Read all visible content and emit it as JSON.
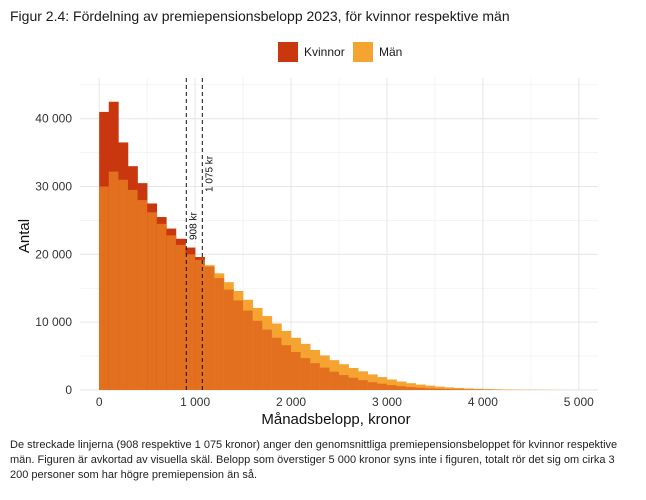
{
  "title": "Figur 2.4: Fördelning av premiepensionsbelopp 2023, för kvinnor respektive män",
  "footnote": "De streckade linjerna (908 respektive 1 075 kronor) anger den genomsnittliga premiepensionsbeloppet för kvinnor respektive män. Figuren är avkortad av visuella skäl. Belopp som överstiger 5 000 kronor syns inte i figuren, totalt rör det sig om cirka 3 200 personer som har högre premiepension än så.",
  "chart_data": {
    "type": "area",
    "chart_style": "overlapping histogram",
    "xlabel": "Månadsbelopp, kronor",
    "ylabel": "Antal",
    "xlim": [
      -200,
      5200
    ],
    "ylim": [
      0,
      46000
    ],
    "x_ticks": [
      0,
      1000,
      2000,
      3000,
      4000,
      5000
    ],
    "x_tick_labels": [
      "0",
      "1 000",
      "2 000",
      "3 000",
      "4 000",
      "5 000"
    ],
    "y_ticks": [
      0,
      10000,
      20000,
      30000,
      40000
    ],
    "y_tick_labels": [
      "0",
      "10 000",
      "20 000",
      "30 000",
      "40 000"
    ],
    "grid": true,
    "legend_position": "top-center",
    "x": [
      0,
      100,
      200,
      300,
      400,
      500,
      600,
      700,
      800,
      900,
      1000,
      1100,
      1200,
      1300,
      1400,
      1500,
      1600,
      1700,
      1800,
      1900,
      2000,
      2100,
      2200,
      2300,
      2400,
      2500,
      2600,
      2700,
      2800,
      2900,
      3000,
      3100,
      3200,
      3300,
      3400,
      3500,
      3600,
      3700,
      3800,
      3900,
      4000,
      4100,
      4200,
      4300,
      4400,
      4500,
      4600,
      4700,
      4800,
      4900,
      5000
    ],
    "series": [
      {
        "name": "Kvinnor",
        "color": "#c8370e",
        "values": [
          41000,
          42500,
          36500,
          33000,
          30500,
          27500,
          25500,
          23800,
          22300,
          21000,
          19600,
          18200,
          16500,
          14800,
          13200,
          11700,
          10200,
          8900,
          7700,
          6600,
          5600,
          4700,
          3950,
          3300,
          2700,
          2200,
          1800,
          1450,
          1150,
          920,
          720,
          560,
          430,
          330,
          250,
          190,
          140,
          105,
          78,
          57,
          42,
          31,
          22,
          16,
          12,
          9,
          6,
          4,
          3,
          2,
          1
        ]
      },
      {
        "name": "Män",
        "color": "#f5a331",
        "values": [
          30000,
          32200,
          31000,
          29500,
          28000,
          26200,
          24500,
          22800,
          21400,
          20000,
          19200,
          18400,
          17200,
          15900,
          14600,
          13300,
          12100,
          10900,
          9800,
          8700,
          7700,
          6800,
          5900,
          5100,
          4400,
          3800,
          3250,
          2750,
          2300,
          1900,
          1550,
          1250,
          1000,
          800,
          640,
          500,
          390,
          300,
          230,
          175,
          130,
          98,
          73,
          54,
          40,
          29,
          21,
          15,
          10,
          7,
          4
        ]
      }
    ],
    "annotations": [
      {
        "x": 908,
        "label": "908 kr",
        "style": "dashed"
      },
      {
        "x": 1075,
        "label": "1 075 kr",
        "style": "dashed"
      }
    ]
  }
}
